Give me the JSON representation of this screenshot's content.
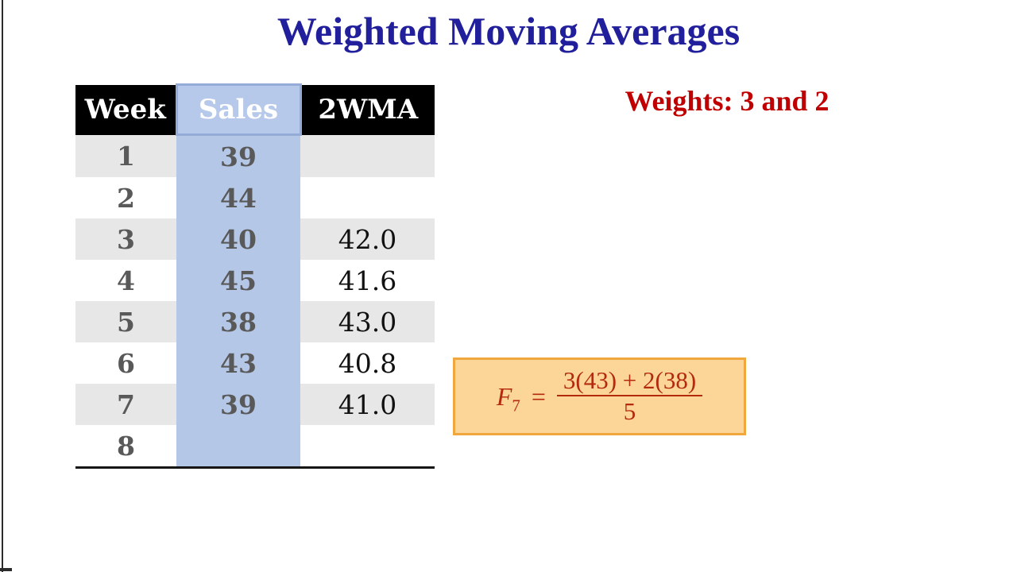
{
  "title": "Weighted Moving Averages",
  "weights_label": "Weights: 3 and 2",
  "table": {
    "columns": [
      "Week",
      "Sales",
      "2WMA"
    ],
    "rows": [
      {
        "week": "1",
        "sales": "39",
        "wma": ""
      },
      {
        "week": "2",
        "sales": "44",
        "wma": ""
      },
      {
        "week": "3",
        "sales": "40",
        "wma": "42.0"
      },
      {
        "week": "4",
        "sales": "45",
        "wma": "41.6"
      },
      {
        "week": "5",
        "sales": "38",
        "wma": "43.0"
      },
      {
        "week": "6",
        "sales": "43",
        "wma": "40.8"
      },
      {
        "week": "7",
        "sales": "39",
        "wma": "41.0"
      },
      {
        "week": "8",
        "sales": "",
        "wma": ""
      }
    ]
  },
  "formula": {
    "lhs": "F",
    "lhs_subscript": "7",
    "equals": "=",
    "numerator": "3(43) + 2(38)",
    "denominator": "5"
  },
  "colors": {
    "title_blue": "#211f9b",
    "weights_red": "#c00000",
    "formula_red": "#b32a0d",
    "sales_highlight_blue": "#b4c7e7",
    "sales_header_border_blue": "#93abd6",
    "row_stripe_gray": "#e8e7e7",
    "table_number_gray": "#595959",
    "header_black": "#000000",
    "formula_box_bg": "#fcd699",
    "formula_box_border": "#f0a73e"
  }
}
